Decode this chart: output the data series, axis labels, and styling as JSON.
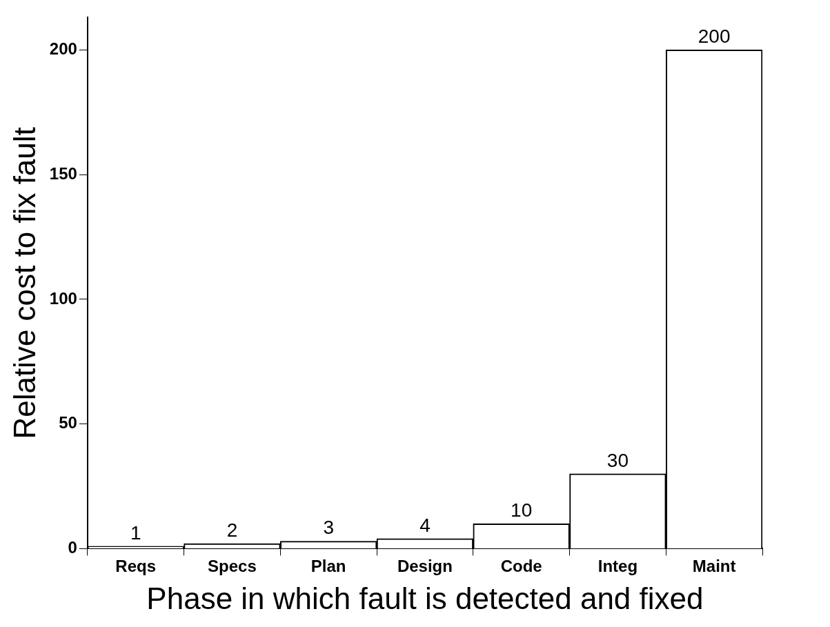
{
  "chart_data": {
    "type": "bar",
    "xlabel": "Phase in which fault is detected and fixed",
    "ylabel": "Relative cost to fix fault",
    "categories": [
      "Reqs",
      "Specs",
      "Plan",
      "Design",
      "Code",
      "Integ",
      "Maint"
    ],
    "values": [
      1,
      2,
      3,
      4,
      10,
      30,
      200
    ],
    "color": "#ffffff",
    "ylim": [
      0,
      213
    ],
    "yticks": [
      0,
      50,
      100,
      150,
      200
    ],
    "data_labels": true,
    "grid": false,
    "legend": false
  }
}
